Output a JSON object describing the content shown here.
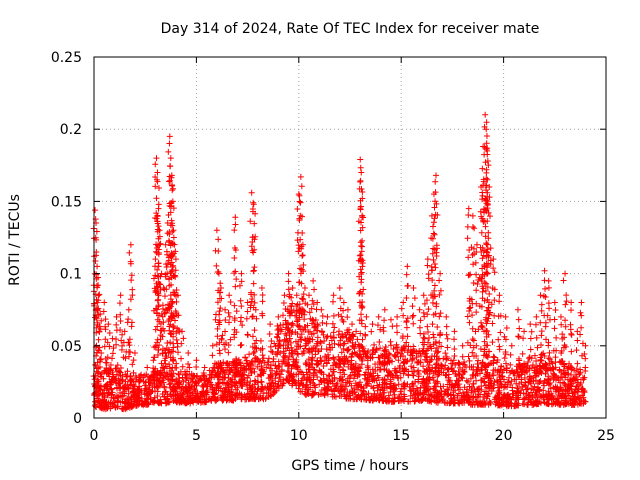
{
  "chart_data": {
    "type": "scatter",
    "title": "Day 314 of 2024, Rate Of TEC Index for receiver mate",
    "xlabel": "GPS time / hours",
    "ylabel": "ROTI / TECUs",
    "xlim": [
      0,
      25
    ],
    "ylim": [
      0,
      0.25
    ],
    "x_ticks": [
      0,
      5,
      10,
      15,
      20,
      25
    ],
    "x_tick_labels": [
      "0",
      "5",
      "10",
      "15",
      "20",
      "25"
    ],
    "y_ticks": [
      0,
      0.05,
      0.1,
      0.15,
      0.2,
      0.25
    ],
    "y_tick_labels": [
      "0",
      "0.05",
      "0.1",
      "0.15",
      "0.2",
      "0.25"
    ],
    "grid": true,
    "marker": "+",
    "color": "#ff0000",
    "series": [
      {
        "name": "ROTI",
        "x": [
          0.05,
          0.1,
          0.15,
          0.2,
          0.25,
          0.3,
          0.35,
          0.5,
          0.7,
          0.9,
          1.1,
          1.3,
          1.5,
          1.7,
          1.8,
          2.0,
          2.3,
          2.6,
          2.9,
          3.0,
          3.05,
          3.1,
          3.15,
          3.2,
          3.3,
          3.4,
          3.5,
          3.6,
          3.7,
          3.75,
          3.8,
          3.85,
          3.9,
          4.0,
          4.1,
          4.3,
          4.6,
          5.0,
          5.4,
          5.8,
          6.0,
          6.1,
          6.2,
          6.4,
          6.6,
          6.9,
          7.2,
          7.5,
          7.7,
          7.8,
          7.9,
          8.2,
          8.6,
          9.0,
          9.3,
          9.5,
          9.7,
          9.9,
          10.0,
          10.1,
          10.2,
          10.3,
          10.5,
          10.7,
          10.9,
          11.1,
          11.4,
          11.7,
          12.0,
          12.2,
          12.4,
          12.6,
          12.8,
          13.0,
          13.05,
          13.1,
          13.3,
          13.6,
          13.9,
          14.2,
          14.5,
          14.8,
          15.1,
          15.3,
          15.6,
          15.9,
          16.1,
          16.3,
          16.5,
          16.6,
          16.7,
          16.9,
          17.2,
          17.6,
          18.0,
          18.3,
          18.5,
          18.7,
          18.9,
          19.0,
          19.1,
          19.15,
          19.2,
          19.3,
          19.5,
          19.8,
          20.1,
          20.4,
          20.7,
          21.0,
          21.3,
          21.6,
          21.8,
          22.0,
          22.2,
          22.5,
          22.8,
          23.0,
          23.3,
          23.6,
          23.8,
          24.0
        ],
        "y": [
          0.144,
          0.135,
          0.105,
          0.092,
          0.06,
          0.072,
          0.045,
          0.08,
          0.065,
          0.055,
          0.07,
          0.085,
          0.06,
          0.075,
          0.12,
          0.045,
          0.03,
          0.035,
          0.04,
          0.11,
          0.18,
          0.17,
          0.145,
          0.13,
          0.1,
          0.09,
          0.12,
          0.135,
          0.195,
          0.18,
          0.168,
          0.15,
          0.125,
          0.11,
          0.085,
          0.06,
          0.045,
          0.04,
          0.035,
          0.05,
          0.13,
          0.1,
          0.09,
          0.075,
          0.085,
          0.139,
          0.1,
          0.08,
          0.156,
          0.148,
          0.075,
          0.09,
          0.065,
          0.07,
          0.085,
          0.1,
          0.09,
          0.085,
          0.155,
          0.167,
          0.12,
          0.09,
          0.085,
          0.095,
          0.08,
          0.075,
          0.07,
          0.085,
          0.09,
          0.08,
          0.075,
          0.065,
          0.06,
          0.179,
          0.17,
          0.152,
          0.07,
          0.065,
          0.07,
          0.075,
          0.068,
          0.07,
          0.08,
          0.105,
          0.09,
          0.075,
          0.085,
          0.11,
          0.14,
          0.155,
          0.168,
          0.1,
          0.07,
          0.06,
          0.05,
          0.145,
          0.14,
          0.12,
          0.16,
          0.188,
          0.21,
          0.2,
          0.185,
          0.16,
          0.11,
          0.085,
          0.07,
          0.05,
          0.075,
          0.06,
          0.065,
          0.07,
          0.085,
          0.102,
          0.095,
          0.08,
          0.07,
          0.1,
          0.08,
          0.06,
          0.08,
          0.05
        ]
      }
    ],
    "background_band": {
      "x": [
        0,
        0.5,
        1,
        1.5,
        2,
        2.5,
        3,
        3.5,
        4,
        4.5,
        5,
        5.5,
        6,
        6.5,
        7,
        7.5,
        8,
        8.5,
        9,
        9.5,
        10,
        10.5,
        11,
        11.5,
        12,
        12.5,
        13,
        13.5,
        14,
        14.5,
        15,
        15.5,
        16,
        16.5,
        17,
        17.5,
        18,
        18.5,
        19,
        19.5,
        20,
        20.5,
        21,
        21.5,
        22,
        22.5,
        23,
        23.5,
        24
      ],
      "low": [
        0.008,
        0.006,
        0.007,
        0.006,
        0.008,
        0.009,
        0.01,
        0.01,
        0.011,
        0.01,
        0.01,
        0.011,
        0.012,
        0.012,
        0.012,
        0.013,
        0.013,
        0.013,
        0.02,
        0.025,
        0.018,
        0.015,
        0.016,
        0.015,
        0.014,
        0.013,
        0.013,
        0.012,
        0.012,
        0.011,
        0.012,
        0.011,
        0.012,
        0.011,
        0.01,
        0.01,
        0.01,
        0.009,
        0.009,
        0.009,
        0.008,
        0.008,
        0.009,
        0.009,
        0.01,
        0.009,
        0.009,
        0.009,
        0.01
      ],
      "high": [
        0.035,
        0.04,
        0.035,
        0.03,
        0.03,
        0.03,
        0.035,
        0.04,
        0.035,
        0.032,
        0.03,
        0.032,
        0.04,
        0.038,
        0.042,
        0.045,
        0.048,
        0.04,
        0.065,
        0.085,
        0.075,
        0.07,
        0.065,
        0.06,
        0.058,
        0.06,
        0.05,
        0.048,
        0.05,
        0.048,
        0.05,
        0.05,
        0.052,
        0.055,
        0.045,
        0.04,
        0.04,
        0.045,
        0.048,
        0.045,
        0.035,
        0.035,
        0.04,
        0.042,
        0.045,
        0.04,
        0.04,
        0.035,
        0.035
      ]
    }
  }
}
